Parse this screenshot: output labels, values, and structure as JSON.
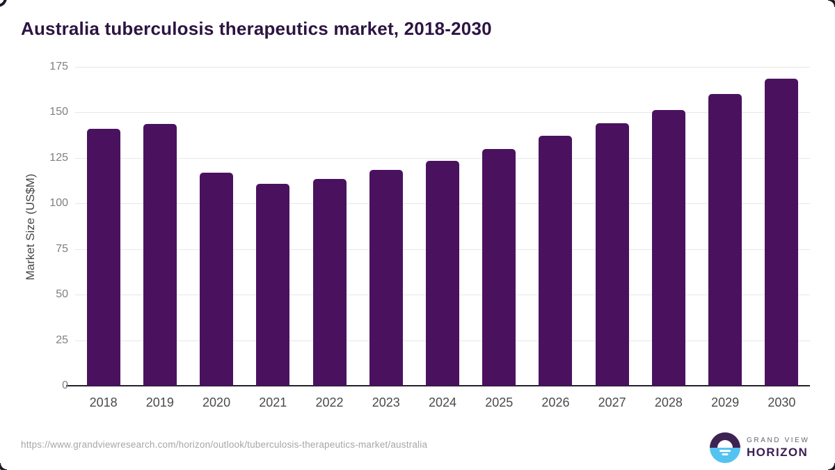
{
  "page": {
    "title": "Australia tuberculosis therapeutics market, 2018-2030"
  },
  "chart_data": {
    "type": "bar",
    "title": "Australia tuberculosis therapeutics market, 2018-2030",
    "categories": [
      "2018",
      "2019",
      "2020",
      "2021",
      "2022",
      "2023",
      "2024",
      "2025",
      "2026",
      "2027",
      "2028",
      "2029",
      "2030"
    ],
    "values": [
      141,
      143.5,
      117,
      111,
      113.5,
      118.5,
      123.5,
      130,
      137,
      144,
      151.5,
      160,
      168.5
    ],
    "xlabel": "",
    "ylabel": "Market Size (US$M)",
    "ylim": [
      0,
      175
    ],
    "yticks": [
      0,
      25,
      50,
      75,
      100,
      125,
      150,
      175
    ],
    "grid": true,
    "legend_position": "none",
    "bar_color": "#4a125e"
  },
  "colors": {
    "title_text": "#2d1441",
    "bar": "#4a125e",
    "axis_line": "#21212b",
    "gridline": "#e7e7e7",
    "y_tick_text": "#7f7f7f",
    "x_tick_text": "#4a4a4a",
    "url_text": "#a6a6a6",
    "logo_purple": "#3d2352",
    "logo_blue": "#55c3f0",
    "logo_horizon_text": "#3a1d52",
    "logo_grandview_text": "#63636e"
  },
  "footer": {
    "source_url": "https://www.grandviewresearch.com/horizon/outlook/tuberculosis-therapeutics-market/australia",
    "logo": {
      "line1": "GRAND VIEW",
      "line2": "HORIZON"
    }
  }
}
